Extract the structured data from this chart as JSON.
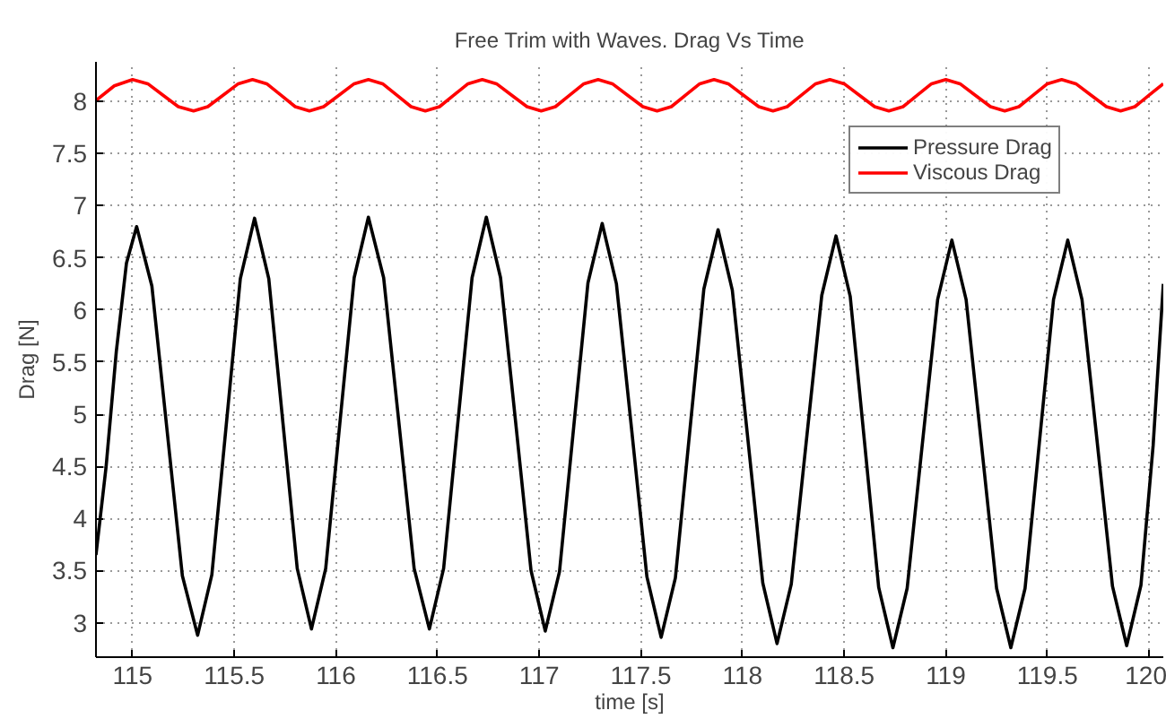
{
  "chart_data": {
    "type": "line",
    "title": "Free Trim with Waves. Drag Vs Time",
    "xlabel": "time [s]",
    "ylabel": "Drag [N]",
    "xlim": [
      114.82,
      120.07
    ],
    "ylim": [
      2.67,
      8.38
    ],
    "xticks": [
      115,
      115.5,
      116,
      116.5,
      117,
      117.5,
      118,
      118.5,
      119,
      119.5,
      120
    ],
    "yticks": [
      3,
      3.5,
      4,
      4.5,
      5,
      5.5,
      6,
      6.5,
      7,
      7.5,
      8
    ],
    "grid": true,
    "legend": "top right",
    "line_style": "solid",
    "marker": "none",
    "series": [
      {
        "name": "Pressure Drag",
        "color": "#000000",
        "x": [
          114.82,
          114.87,
          114.92,
          114.97,
          115.02,
          115.095,
          115.17,
          115.245,
          115.32,
          115.39,
          115.46,
          115.53,
          115.6,
          115.67,
          115.74,
          115.81,
          115.88,
          115.95,
          116.02,
          116.09,
          116.16,
          116.235,
          116.31,
          116.385,
          116.46,
          116.53,
          116.6,
          116.67,
          116.74,
          116.81,
          116.885,
          116.96,
          117.03,
          117.1,
          117.17,
          117.24,
          117.31,
          117.38,
          117.455,
          117.53,
          117.6,
          117.67,
          117.74,
          117.81,
          117.88,
          117.95,
          118.025,
          118.1,
          118.17,
          118.24,
          118.315,
          118.39,
          118.46,
          118.53,
          118.6,
          118.67,
          118.74,
          118.81,
          118.885,
          118.96,
          119.03,
          119.1,
          119.175,
          119.25,
          119.32,
          119.39,
          119.46,
          119.53,
          119.6,
          119.67,
          119.745,
          119.82,
          119.89,
          119.96,
          120.02,
          120.07
        ],
        "values": [
          3.65,
          4.5,
          5.6,
          6.45,
          6.8,
          6.23,
          4.84,
          3.45,
          2.88,
          3.46,
          4.88,
          6.3,
          6.88,
          6.3,
          4.91,
          3.52,
          2.94,
          3.52,
          4.92,
          6.31,
          6.89,
          6.31,
          4.92,
          3.52,
          2.94,
          3.52,
          4.92,
          6.31,
          6.89,
          6.31,
          4.91,
          3.5,
          2.92,
          3.49,
          4.88,
          6.26,
          6.83,
          6.25,
          4.85,
          3.44,
          2.86,
          3.43,
          4.82,
          6.2,
          6.77,
          6.19,
          4.79,
          3.38,
          2.8,
          3.37,
          4.76,
          6.14,
          6.71,
          6.13,
          4.74,
          3.34,
          2.76,
          3.33,
          4.72,
          6.1,
          6.67,
          6.1,
          4.72,
          3.33,
          2.76,
          3.33,
          4.72,
          6.1,
          6.67,
          6.1,
          4.73,
          3.35,
          2.78,
          3.36,
          4.7,
          6.25
        ]
      },
      {
        "name": "Viscous Drag",
        "color": "#ff0000",
        "x": [
          114.82,
          114.91,
          115.0,
          115.075,
          115.15,
          115.225,
          115.3,
          115.37,
          115.445,
          115.52,
          115.59,
          115.66,
          115.73,
          115.8,
          115.87,
          115.94,
          116.015,
          116.09,
          116.16,
          116.23,
          116.3,
          116.37,
          116.44,
          116.51,
          116.58,
          116.65,
          116.72,
          116.79,
          116.865,
          116.94,
          117.01,
          117.08,
          117.15,
          117.22,
          117.29,
          117.36,
          117.435,
          117.51,
          117.58,
          117.65,
          117.72,
          117.79,
          117.86,
          117.93,
          118.005,
          118.08,
          118.15,
          118.22,
          118.29,
          118.36,
          118.43,
          118.5,
          118.575,
          118.65,
          118.72,
          118.79,
          118.86,
          118.93,
          119.0,
          119.07,
          119.145,
          119.22,
          119.29,
          119.36,
          119.43,
          119.5,
          119.57,
          119.64,
          119.715,
          119.79,
          119.86,
          119.93,
          120.0,
          120.07
        ],
        "values": [
          8.01,
          8.15,
          8.21,
          8.17,
          8.06,
          7.95,
          7.91,
          7.95,
          8.06,
          8.17,
          8.21,
          8.17,
          8.06,
          7.95,
          7.91,
          7.95,
          8.06,
          8.17,
          8.21,
          8.17,
          8.06,
          7.95,
          7.91,
          7.95,
          8.06,
          8.17,
          8.21,
          8.17,
          8.06,
          7.95,
          7.91,
          7.95,
          8.06,
          8.17,
          8.21,
          8.17,
          8.06,
          7.95,
          7.91,
          7.95,
          8.06,
          8.17,
          8.21,
          8.17,
          8.06,
          7.95,
          7.91,
          7.95,
          8.06,
          8.17,
          8.21,
          8.17,
          8.06,
          7.95,
          7.91,
          7.95,
          8.06,
          8.17,
          8.21,
          8.17,
          8.06,
          7.95,
          7.91,
          7.95,
          8.06,
          8.17,
          8.21,
          8.17,
          8.06,
          7.95,
          7.91,
          7.95,
          8.06,
          8.17
        ]
      }
    ]
  }
}
